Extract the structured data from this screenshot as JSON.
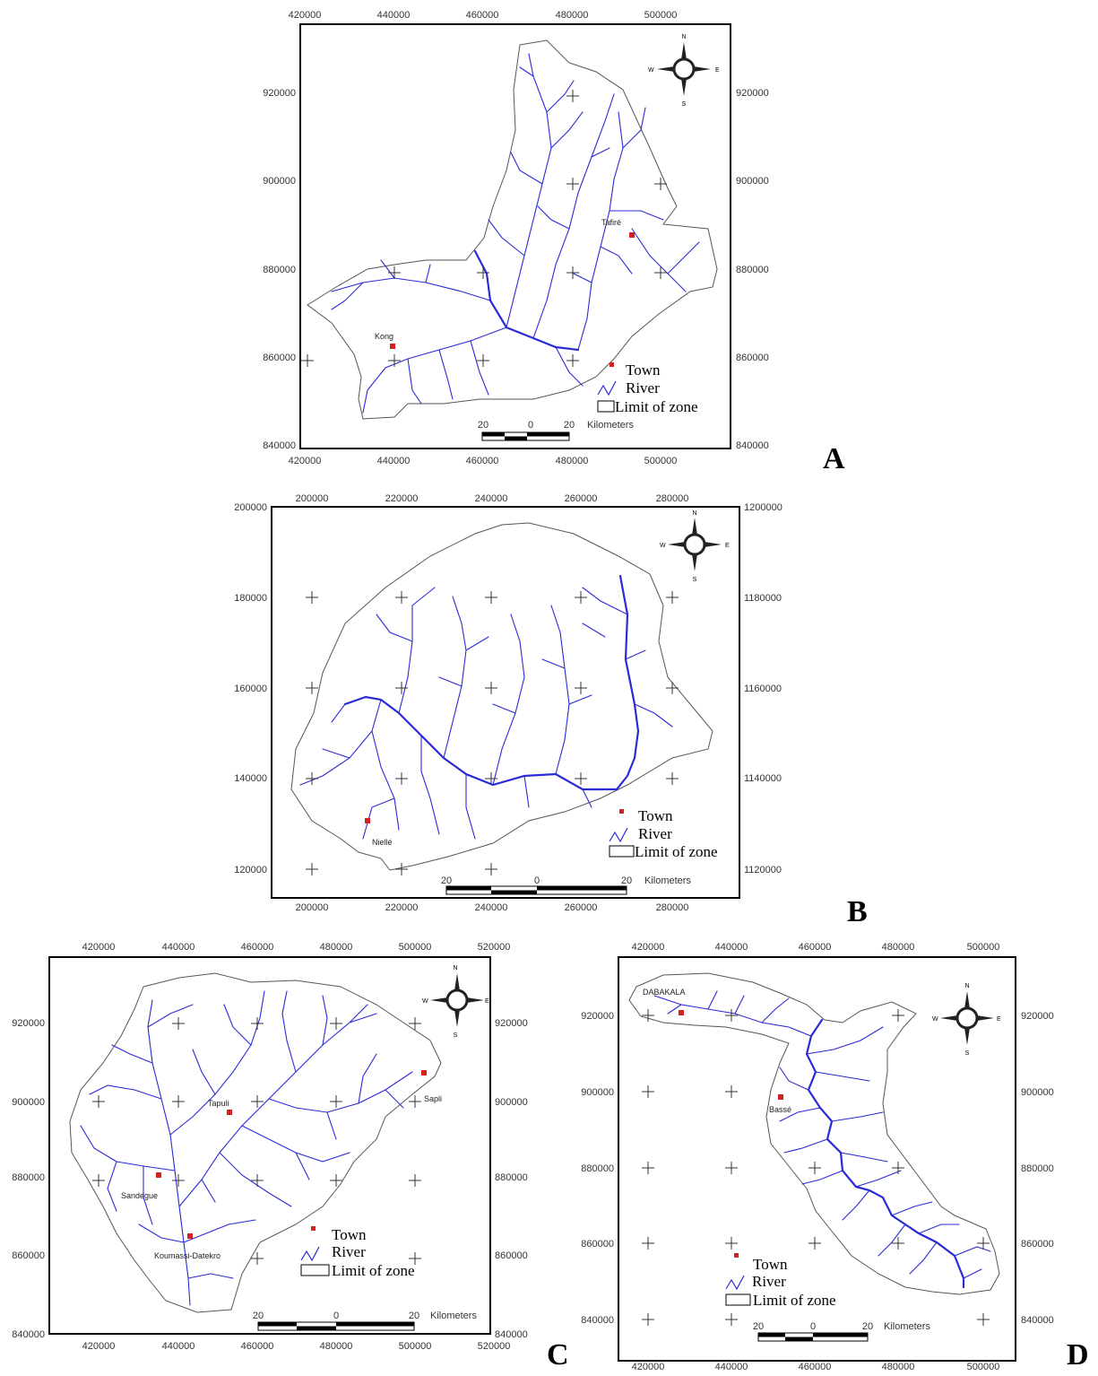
{
  "maps": [
    {
      "id": "A",
      "panel_letter": "A",
      "x_ticks": [
        "420000",
        "440000",
        "460000",
        "480000",
        "500000"
      ],
      "y_ticks": [
        "920000",
        "900000",
        "880000",
        "860000",
        "840000"
      ],
      "towns": [
        "Tafiré",
        "Kong"
      ],
      "legend": {
        "town": "Town",
        "river": "River",
        "limit": "Limit of zone"
      },
      "scale": {
        "left": "20",
        "mid": "0",
        "right": "20",
        "unit": "Kilometers"
      },
      "compass": {
        "n": "N",
        "s": "S",
        "e": "E",
        "w": "W"
      }
    },
    {
      "id": "B",
      "panel_letter": "B",
      "x_ticks": [
        "200000",
        "220000",
        "240000",
        "260000",
        "280000"
      ],
      "y_ticks_left": [
        "200000",
        "180000",
        "160000",
        "140000",
        "120000"
      ],
      "y_ticks_right": [
        "1200000",
        "1180000",
        "1160000",
        "1140000",
        "1120000"
      ],
      "towns": [
        "Niellé"
      ],
      "legend": {
        "town": "Town",
        "river": "River",
        "limit": "Limit of zone"
      },
      "scale": {
        "left": "20",
        "mid": "0",
        "right": "20",
        "unit": "Kilometers"
      },
      "compass": {
        "n": "N",
        "s": "S",
        "e": "E",
        "w": "W"
      }
    },
    {
      "id": "C",
      "panel_letter": "C",
      "x_ticks": [
        "420000",
        "440000",
        "460000",
        "480000",
        "500000",
        "520000"
      ],
      "y_ticks": [
        "920000",
        "900000",
        "880000",
        "860000",
        "840000"
      ],
      "towns": [
        "Tapuli",
        "Sapli",
        "Sandegue",
        "Koumassi-Datekro"
      ],
      "legend": {
        "town": "Town",
        "river": "River",
        "limit": "Limit of zone"
      },
      "scale": {
        "left": "20",
        "mid": "0",
        "right": "20",
        "unit": "Kilometers"
      },
      "compass": {
        "n": "N",
        "s": "S",
        "e": "E",
        "w": "W"
      }
    },
    {
      "id": "D",
      "panel_letter": "D",
      "x_ticks": [
        "420000",
        "440000",
        "460000",
        "480000",
        "500000"
      ],
      "y_ticks": [
        "920000",
        "900000",
        "880000",
        "860000",
        "840000"
      ],
      "towns": [
        "DABAKALA",
        "Bassé"
      ],
      "legend": {
        "town": "Town",
        "river": "River",
        "limit": "Limit of zone"
      },
      "scale": {
        "left": "20",
        "mid": "0",
        "right": "20",
        "unit": "Kilometers"
      },
      "compass": {
        "n": "N",
        "s": "S",
        "e": "E",
        "w": "W"
      }
    }
  ],
  "colors": {
    "river": "#2a2ad6",
    "town": "#d62020",
    "frame": "#000000",
    "boundary": "#555555"
  }
}
